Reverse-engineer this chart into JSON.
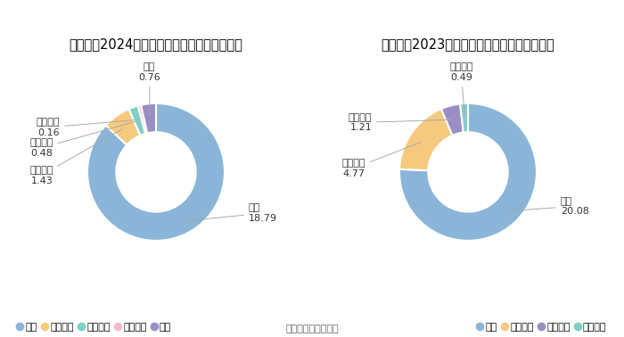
{
  "chart1_title": "郑州煤电2024年上半年营业收入构成（亿元）",
  "chart2_title": "郑州煤电2023年上半年营业收入构成（亿元）",
  "source": "数据来源：恒生聚源",
  "chart1": {
    "labels": [
      "煤炭",
      "物资流通",
      "铁路运输",
      "建筑工程",
      "其他"
    ],
    "values": [
      18.79,
      1.43,
      0.48,
      0.16,
      0.76
    ],
    "colors": [
      "#8ab4d8",
      "#f6ca7e",
      "#7ecfc5",
      "#f5bcc8",
      "#9b8ec4"
    ],
    "legend_labels": [
      "煤炭",
      "物资流通",
      "铁路运输",
      "建筑工程",
      "其他"
    ]
  },
  "chart2": {
    "labels": [
      "煤炭",
      "物资流通",
      "建筑施工",
      "铁路运输"
    ],
    "values": [
      20.08,
      4.77,
      1.21,
      0.49
    ],
    "colors": [
      "#8ab4d8",
      "#f6ca7e",
      "#9b8ec4",
      "#7ecfc5"
    ],
    "legend_labels": [
      "煤炭",
      "物资流通",
      "建筑施工",
      "铁路运输"
    ]
  },
  "background_color": "#ffffff",
  "title_fontsize": 10.5,
  "label_fontsize": 8,
  "legend_fontsize": 8,
  "source_fontsize": 8
}
